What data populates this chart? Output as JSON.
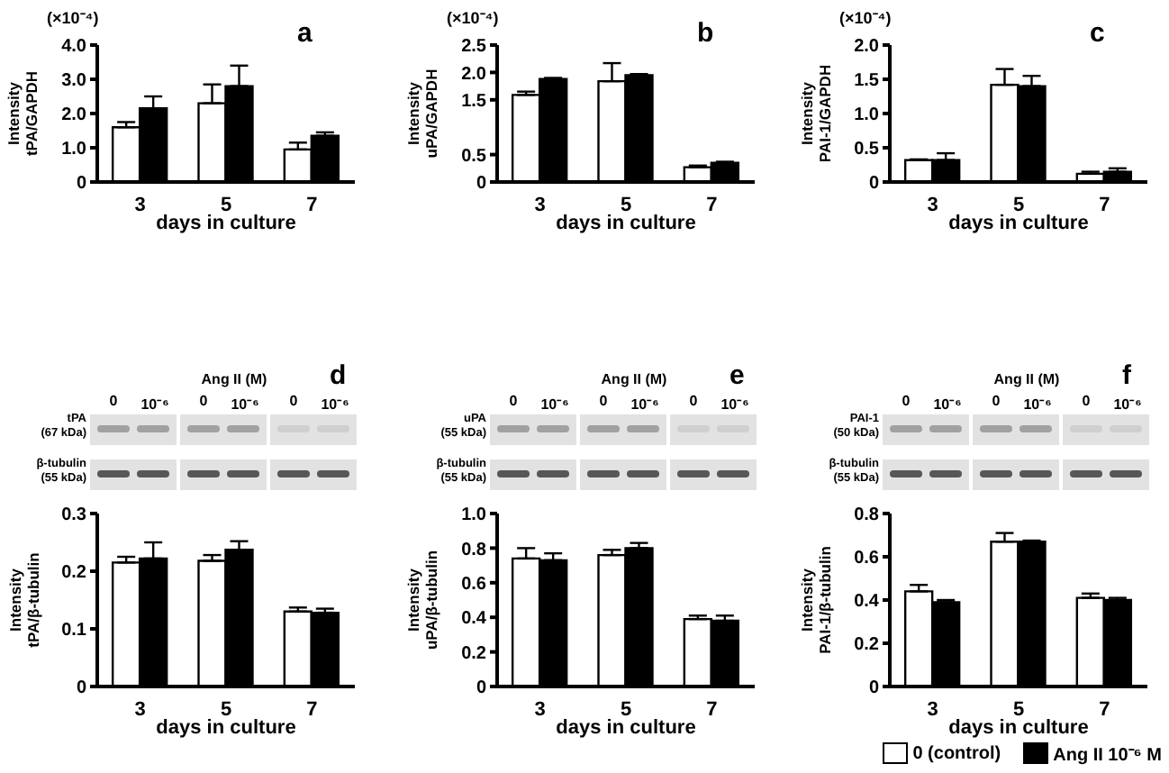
{
  "chart_data": [
    {
      "type": "bar",
      "title": "a",
      "xlabel": "days in culture",
      "ylabel": "Intensity\ntPA/GAPDH",
      "annotations": [
        "(×10⁻⁴)"
      ],
      "categories": [
        "3",
        "5",
        "7"
      ],
      "ylim": [
        0,
        4
      ],
      "yticks": [
        0,
        {
          "value": 1,
          "label": "1.0"
        },
        {
          "value": 2,
          "label": "2.0"
        },
        {
          "value": 3,
          "label": "3.0"
        },
        {
          "value": 4,
          "label": "4.0"
        }
      ],
      "grid": false,
      "legend": false,
      "series": [
        {
          "color": "#ffffff",
          "values": [
            1.6,
            2.3,
            0.95
          ],
          "errors": [
            [
              1.6,
              1.75
            ],
            [
              2.3,
              2.85
            ],
            [
              0.95,
              1.15
            ]
          ]
        },
        {
          "color": "#000000",
          "values": [
            2.15,
            2.8,
            1.35
          ],
          "errors": [
            [
              2.15,
              2.5
            ],
            [
              2.8,
              3.4
            ],
            [
              1.35,
              1.45
            ]
          ]
        }
      ]
    },
    {
      "type": "bar",
      "title": "b",
      "xlabel": "days in culture",
      "ylabel": "Intensity\nuPA/GAPDH",
      "annotations": [
        "(×10⁻⁴)"
      ],
      "categories": [
        "3",
        "5",
        "7"
      ],
      "ylim": [
        0,
        2.5
      ],
      "yticks": [
        0,
        0.5,
        1.5,
        {
          "value": 2,
          "label": "2.0"
        },
        2.5
      ],
      "grid": false,
      "legend": false,
      "series": [
        {
          "color": "#ffffff",
          "values": [
            1.59,
            1.84,
            0.27
          ],
          "errors": [
            [
              1.59,
              1.65
            ],
            [
              1.84,
              2.17
            ],
            [
              0.27,
              0.3
            ]
          ]
        },
        {
          "color": "#000000",
          "values": [
            1.88,
            1.95,
            0.35
          ],
          "errors": [
            [
              1.88,
              1.9
            ],
            [
              1.95,
              1.97
            ],
            [
              0.35,
              0.37
            ]
          ]
        }
      ]
    },
    {
      "type": "bar",
      "title": "c",
      "xlabel": "days in culture",
      "ylabel": "Intensity\nPAI-1/GAPDH",
      "annotations": [
        "(×10⁻⁴)"
      ],
      "categories": [
        "3",
        "5",
        "7"
      ],
      "ylim": [
        0,
        2
      ],
      "yticks": [
        0,
        0.5,
        {
          "value": 1,
          "label": "1.0"
        },
        1.5,
        {
          "value": 2,
          "label": "2.0"
        }
      ],
      "grid": false,
      "legend": false,
      "series": [
        {
          "color": "#ffffff",
          "values": [
            0.32,
            1.42,
            0.12
          ],
          "errors": [
            [
              0.32,
              0.33
            ],
            [
              1.42,
              1.65
            ],
            [
              0.12,
              0.15
            ]
          ]
        },
        {
          "color": "#000000",
          "values": [
            0.32,
            1.4,
            0.15
          ],
          "errors": [
            [
              0.32,
              0.42
            ],
            [
              1.4,
              1.55
            ],
            [
              0.15,
              0.2
            ]
          ]
        }
      ]
    },
    {
      "type": "bar",
      "title": "d",
      "xlabel": "days in culture",
      "ylabel": "Intensity\ntPA/β-tubulin",
      "annotations": [
        "Ang II (M)",
        "0",
        "10⁻⁶",
        "0",
        "10⁻⁶",
        "0",
        "10⁻⁶",
        "tPA\n(67 kDa)",
        "β-tubulin\n(55 kDa)"
      ],
      "categories": [
        "3",
        "5",
        "7"
      ],
      "ylim": [
        0,
        0.3
      ],
      "yticks": [
        0,
        0.1,
        0.2,
        0.3
      ],
      "grid": false,
      "legend": false,
      "series": [
        {
          "color": "#ffffff",
          "values": [
            0.215,
            0.218,
            0.13
          ],
          "errors": [
            [
              0.215,
              0.225
            ],
            [
              0.218,
              0.228
            ],
            [
              0.13,
              0.137
            ]
          ]
        },
        {
          "color": "#000000",
          "values": [
            0.222,
            0.237,
            0.128
          ],
          "errors": [
            [
              0.222,
              0.25
            ],
            [
              0.237,
              0.252
            ],
            [
              0.128,
              0.135
            ]
          ]
        }
      ]
    },
    {
      "type": "bar",
      "title": "e",
      "xlabel": "days in culture",
      "ylabel": "Intensity\nuPA/β-tubulin",
      "annotations": [
        "Ang II (M)",
        "0",
        "10⁻⁶",
        "0",
        "10⁻⁶",
        "0",
        "10⁻⁶",
        "uPA\n(55 kDa)",
        "β-tubulin\n(55 kDa)"
      ],
      "categories": [
        "3",
        "5",
        "7"
      ],
      "ylim": [
        0,
        1
      ],
      "yticks": [
        0,
        0.2,
        0.4,
        0.6,
        0.8,
        {
          "value": 1,
          "label": "1.0"
        }
      ],
      "grid": false,
      "legend": false,
      "series": [
        {
          "color": "#ffffff",
          "values": [
            0.74,
            0.76,
            0.39
          ],
          "errors": [
            [
              0.74,
              0.8
            ],
            [
              0.76,
              0.79
            ],
            [
              0.39,
              0.41
            ]
          ]
        },
        {
          "color": "#000000",
          "values": [
            0.73,
            0.8,
            0.38
          ],
          "errors": [
            [
              0.73,
              0.77
            ],
            [
              0.8,
              0.83
            ],
            [
              0.38,
              0.41
            ]
          ]
        }
      ]
    },
    {
      "type": "bar",
      "title": "f",
      "xlabel": "days in culture",
      "ylabel": "Intensity\nPAI-1/β-tubulin",
      "annotations": [
        "Ang II (M)",
        "0",
        "10⁻⁶",
        "0",
        "10⁻⁶",
        "0",
        "10⁻⁶",
        "PAI-1\n(50 kDa)",
        "β-tubulin\n(55 kDa)"
      ],
      "categories": [
        "3",
        "5",
        "7"
      ],
      "ylim": [
        0,
        0.8
      ],
      "yticks": [
        0,
        0.2,
        0.4,
        0.6,
        0.8
      ],
      "grid": false,
      "legend": "bottom right",
      "series": [
        {
          "name": "0 (control)",
          "color": "#ffffff",
          "values": [
            0.44,
            0.67,
            0.41
          ],
          "errors": [
            [
              0.44,
              0.47
            ],
            [
              0.67,
              0.71
            ],
            [
              0.41,
              0.43
            ]
          ]
        },
        {
          "name": "Ang II 10⁻⁶ M",
          "color": "#000000",
          "values": [
            0.39,
            0.67,
            0.4
          ],
          "errors": [
            [
              0.39,
              0.4
            ],
            [
              0.67,
              0.675
            ],
            [
              0.4,
              0.41
            ]
          ]
        }
      ]
    }
  ]
}
